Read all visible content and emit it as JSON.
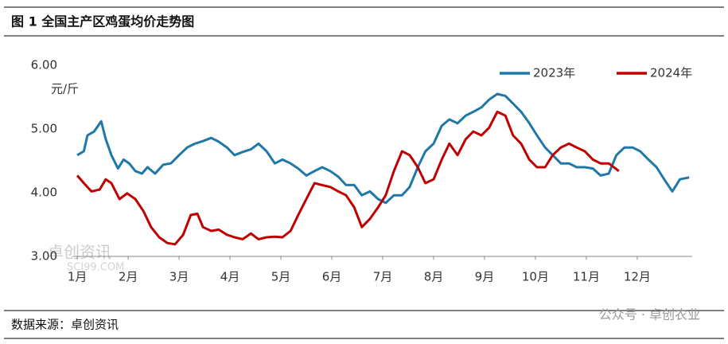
{
  "chart_data": {
    "type": "line",
    "title": "图 1 全国主产区鸡蛋均价走势图",
    "y_label": "元/斤",
    "source": "数据来源：卓创资讯",
    "watermarks": [
      "卓创资讯",
      "SCI99.COM",
      "公众号 · 卓创农业"
    ],
    "xlim": [
      0.92,
      13.08
    ],
    "xticks": [
      {
        "value": 1,
        "label": "1月"
      },
      {
        "value": 2,
        "label": "2月"
      },
      {
        "value": 3,
        "label": "3月"
      },
      {
        "value": 4,
        "label": "4月"
      },
      {
        "value": 5,
        "label": "5月"
      },
      {
        "value": 6,
        "label": "6月"
      },
      {
        "value": 7,
        "label": "7月"
      },
      {
        "value": 8,
        "label": "8月"
      },
      {
        "value": 9,
        "label": "9月"
      },
      {
        "value": 10,
        "label": "10月"
      },
      {
        "value": 11,
        "label": "11月"
      },
      {
        "value": 12,
        "label": "12月"
      }
    ],
    "ylim": [
      3,
      6
    ],
    "yticks": [
      {
        "value": 3,
        "label": "3.00"
      },
      {
        "value": 4,
        "label": "4.00"
      },
      {
        "value": 5,
        "label": "5.00"
      },
      {
        "value": 6,
        "label": "6.00"
      }
    ],
    "grid": false,
    "legend": "top-right",
    "series": [
      {
        "name": "2023年",
        "color": "#1f78a8",
        "x": [
          1.0,
          1.13,
          1.2,
          1.33,
          1.47,
          1.56,
          1.67,
          1.8,
          1.91,
          2.02,
          2.14,
          2.27,
          2.38,
          2.53,
          2.69,
          2.84,
          3.0,
          3.16,
          3.31,
          3.47,
          3.63,
          3.78,
          3.94,
          4.09,
          4.25,
          4.41,
          4.56,
          4.72,
          4.88,
          5.03,
          5.19,
          5.34,
          5.5,
          5.66,
          5.81,
          5.97,
          6.13,
          6.28,
          6.44,
          6.59,
          6.75,
          6.91,
          7.06,
          7.22,
          7.38,
          7.53,
          7.69,
          7.84,
          8.0,
          8.16,
          8.31,
          8.47,
          8.63,
          8.78,
          8.94,
          9.09,
          9.25,
          9.41,
          9.56,
          9.72,
          9.88,
          10.03,
          10.19,
          10.34,
          10.5,
          10.66,
          10.81,
          10.97,
          11.13,
          11.28,
          11.44,
          11.59,
          11.75,
          11.91,
          12.06,
          12.22,
          12.38,
          12.53,
          12.69,
          12.84,
          13.02
        ],
        "values": [
          4.59,
          4.65,
          4.9,
          4.96,
          5.12,
          4.84,
          4.59,
          4.38,
          4.52,
          4.46,
          4.34,
          4.3,
          4.4,
          4.3,
          4.44,
          4.46,
          4.59,
          4.71,
          4.77,
          4.81,
          4.86,
          4.8,
          4.71,
          4.59,
          4.64,
          4.68,
          4.77,
          4.65,
          4.46,
          4.52,
          4.46,
          4.38,
          4.27,
          4.34,
          4.4,
          4.34,
          4.25,
          4.12,
          4.12,
          3.96,
          4.02,
          3.9,
          3.84,
          3.96,
          3.96,
          4.09,
          4.4,
          4.65,
          4.77,
          5.05,
          5.15,
          5.09,
          5.21,
          5.27,
          5.34,
          5.46,
          5.55,
          5.52,
          5.4,
          5.27,
          5.09,
          4.9,
          4.71,
          4.59,
          4.46,
          4.46,
          4.4,
          4.4,
          4.38,
          4.27,
          4.3,
          4.59,
          4.71,
          4.71,
          4.65,
          4.52,
          4.4,
          4.21,
          4.02,
          4.21,
          4.24
        ]
      },
      {
        "name": "2024年",
        "color": "#c00000",
        "x": [
          1.0,
          1.13,
          1.28,
          1.44,
          1.56,
          1.67,
          1.83,
          1.98,
          2.14,
          2.3,
          2.45,
          2.61,
          2.77,
          2.92,
          3.08,
          3.23,
          3.36,
          3.47,
          3.63,
          3.78,
          3.94,
          4.09,
          4.25,
          4.41,
          4.56,
          4.72,
          4.88,
          5.03,
          5.19,
          5.34,
          5.5,
          5.66,
          5.81,
          5.97,
          6.13,
          6.28,
          6.44,
          6.59,
          6.75,
          6.91,
          7.06,
          7.22,
          7.38,
          7.53,
          7.69,
          7.84,
          8.0,
          8.16,
          8.31,
          8.47,
          8.63,
          8.78,
          8.94,
          9.09,
          9.25,
          9.41,
          9.56,
          9.72,
          9.88,
          10.03,
          10.19,
          10.34,
          10.5,
          10.66,
          10.81,
          10.97,
          11.13,
          11.28,
          11.44,
          11.64
        ],
        "values": [
          4.27,
          4.15,
          4.02,
          4.05,
          4.21,
          4.15,
          3.9,
          3.99,
          3.9,
          3.71,
          3.46,
          3.3,
          3.21,
          3.19,
          3.34,
          3.65,
          3.67,
          3.46,
          3.4,
          3.42,
          3.34,
          3.3,
          3.27,
          3.36,
          3.27,
          3.3,
          3.31,
          3.3,
          3.4,
          3.65,
          3.9,
          4.15,
          4.12,
          4.09,
          4.02,
          3.96,
          3.77,
          3.46,
          3.59,
          3.77,
          3.96,
          4.34,
          4.65,
          4.59,
          4.4,
          4.15,
          4.21,
          4.52,
          4.77,
          4.59,
          4.84,
          4.96,
          4.9,
          5.02,
          5.27,
          5.21,
          4.9,
          4.77,
          4.52,
          4.4,
          4.4,
          4.59,
          4.71,
          4.77,
          4.71,
          4.65,
          4.52,
          4.46,
          4.46,
          4.34
        ]
      }
    ]
  }
}
